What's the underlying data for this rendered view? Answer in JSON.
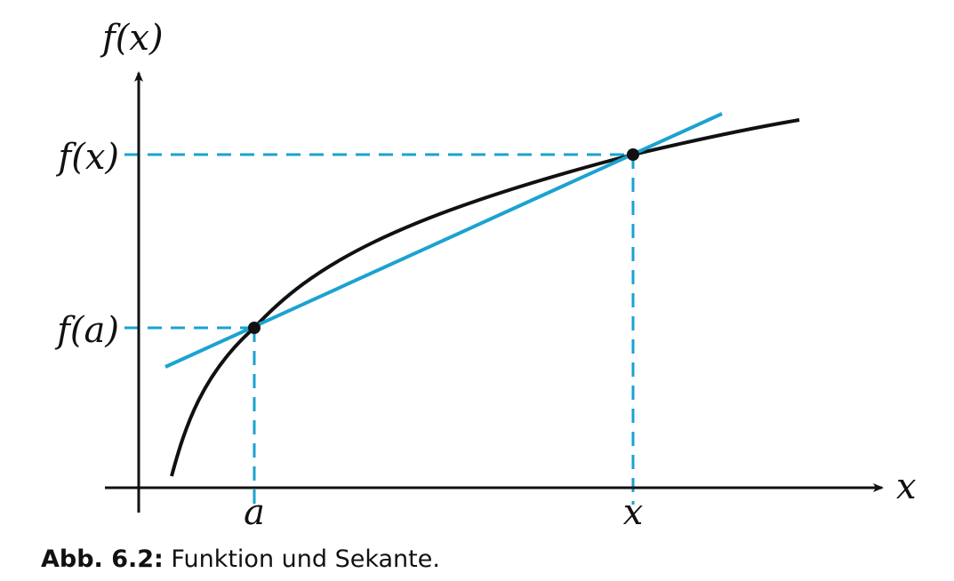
{
  "figure": {
    "y_axis_label": "f(x)",
    "x_axis_label": "x",
    "tick_fx": "f(x)",
    "tick_fa": "f(a)",
    "tick_a": "a",
    "tick_x": "x",
    "colors": {
      "curve": "#111111",
      "secant": "#1aa3d0",
      "guides": "#1aa3d0",
      "axes": "#111111"
    }
  },
  "caption": {
    "label": "Abb. 6.2:",
    "text": " Funktion und Sekante."
  }
}
